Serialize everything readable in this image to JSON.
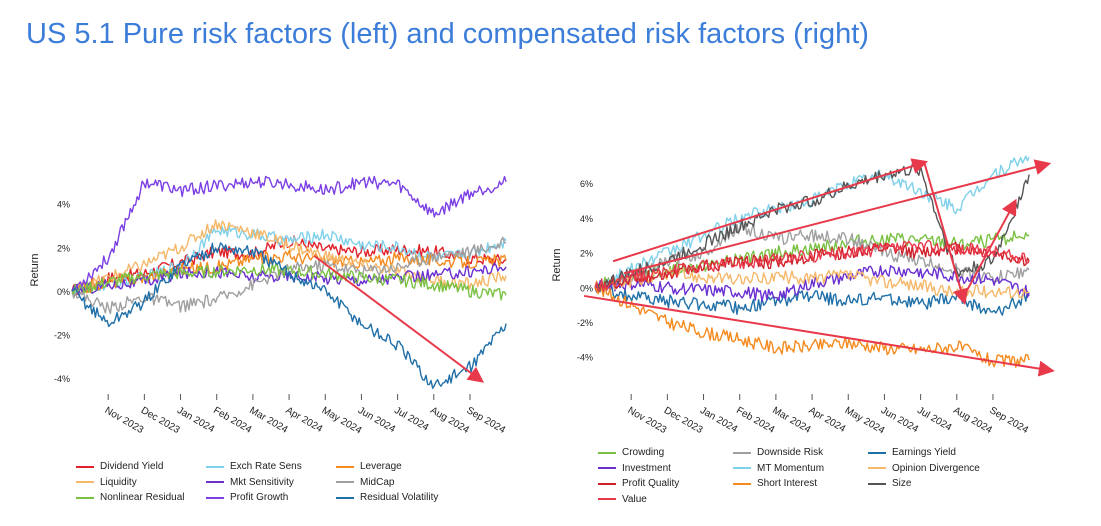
{
  "page": {
    "title": "US 5.1 Pure risk factors (left) and compensated risk factors (right)"
  },
  "chart_data": [
    {
      "type": "line",
      "ylabel": "Return",
      "ylim": [
        -5,
        6
      ],
      "yticks": [
        4,
        2,
        0,
        -2,
        -4
      ],
      "ytick_labels": [
        "4%",
        "2%",
        "0%",
        "-2%",
        "-4%"
      ],
      "xlim": [
        0,
        12.3
      ],
      "xtick_positions": [
        1,
        2,
        3,
        4,
        5,
        6,
        7,
        8,
        9,
        10,
        11
      ],
      "xtick_labels": [
        "Nov 2023",
        "Dec 2023",
        "Jan 2024",
        "Feb 2024",
        "Mar 2024",
        "Apr 2024",
        "May 2024",
        "Jun 2024",
        "Jul 2024",
        "Aug 2024",
        "Sep 2024"
      ],
      "series": [
        {
          "name": "Dividend Yield",
          "color": "#e0202a",
          "x": [
            0,
            1,
            2,
            3,
            4,
            5,
            6,
            7,
            8,
            9,
            10,
            11,
            12
          ],
          "values": [
            0,
            0.6,
            0.8,
            1.3,
            1.8,
            1.7,
            2.3,
            1.9,
            1.8,
            1.9,
            1.8,
            1.5,
            1.4
          ]
        },
        {
          "name": "Exch Rate Sens",
          "color": "#7fd0ea",
          "x": [
            0,
            1,
            2,
            3,
            4,
            5,
            6,
            7,
            8,
            9,
            10,
            11,
            12
          ],
          "values": [
            0,
            0.3,
            0.6,
            1.2,
            2.8,
            2.6,
            2.3,
            2.6,
            2.1,
            2.0,
            1.5,
            1.7,
            2.3
          ]
        },
        {
          "name": "Leverage",
          "color": "#f58a1f",
          "x": [
            0,
            1,
            2,
            3,
            4,
            5,
            6,
            7,
            8,
            9,
            10,
            11,
            12
          ],
          "values": [
            0,
            0.4,
            0.6,
            1.0,
            1.1,
            1.5,
            1.6,
            1.4,
            1.3,
            1.5,
            1.4,
            1.3,
            1.4
          ]
        },
        {
          "name": "Liquidity",
          "color": "#f5b86a",
          "x": [
            0,
            1,
            2,
            3,
            4,
            5,
            6,
            7,
            8,
            9,
            10,
            11,
            12
          ],
          "values": [
            0,
            0.6,
            1.2,
            2.0,
            3.1,
            2.7,
            2.1,
            1.6,
            1.2,
            0.9,
            0.5,
            0.3,
            0.7
          ]
        },
        {
          "name": "Mkt Sensitivity",
          "color": "#6a2fd0",
          "x": [
            0,
            1,
            2,
            3,
            4,
            5,
            6,
            7,
            8,
            9,
            10,
            11,
            12
          ],
          "values": [
            0,
            0.3,
            0.4,
            0.8,
            0.9,
            0.6,
            0.7,
            0.6,
            0.5,
            0.6,
            0.7,
            0.9,
            1.1
          ]
        },
        {
          "name": "MidCap",
          "color": "#a0a0a0",
          "x": [
            0,
            1,
            2,
            3,
            4,
            5,
            6,
            7,
            8,
            9,
            10,
            11,
            12
          ],
          "values": [
            0,
            -0.8,
            -0.3,
            -0.7,
            -0.4,
            0.3,
            1.0,
            1.2,
            0.9,
            1.1,
            1.6,
            1.8,
            2.2
          ]
        },
        {
          "name": "Nonlinear Residual",
          "color": "#7ac143",
          "x": [
            0,
            1,
            2,
            3,
            4,
            5,
            6,
            7,
            8,
            9,
            10,
            11,
            12
          ],
          "values": [
            0,
            0.4,
            0.7,
            0.8,
            0.9,
            1.0,
            0.9,
            0.8,
            0.6,
            0.5,
            0.3,
            0,
            -0.2
          ]
        },
        {
          "name": "Profit Growth",
          "color": "#7b3fe4",
          "x": [
            0,
            1,
            2,
            3,
            4,
            5,
            6,
            7,
            8,
            9,
            10,
            11,
            12
          ],
          "values": [
            0,
            1.5,
            5.0,
            4.6,
            4.8,
            5.0,
            4.9,
            4.6,
            5.0,
            4.9,
            3.5,
            4.5,
            5.0
          ]
        },
        {
          "name": "Residual Volatility",
          "color": "#1f6fa8",
          "x": [
            0,
            1,
            2,
            3,
            4,
            5,
            6,
            7,
            8,
            9,
            10,
            11,
            12
          ],
          "values": [
            0,
            -1.5,
            -0.5,
            1.2,
            2.0,
            1.8,
            0.8,
            0,
            -1.5,
            -2.5,
            -4.4,
            -3.5,
            -1.5
          ]
        }
      ],
      "annotations": [
        {
          "type": "arrow",
          "color": "#e8394a",
          "from": [
            6.7,
            1.6
          ],
          "to": [
            11.3,
            -4.1
          ]
        }
      ]
    },
    {
      "type": "line",
      "ylabel": "Return",
      "ylim": [
        -6.5,
        7.8
      ],
      "yticks": [
        6,
        4,
        2,
        0,
        -2,
        -4
      ],
      "ytick_labels": [
        "6%",
        "4%",
        "2%",
        "0%",
        "-2%",
        "-4%"
      ],
      "xlim": [
        0,
        12.3
      ],
      "xtick_positions": [
        1,
        2,
        3,
        4,
        5,
        6,
        7,
        8,
        9,
        10,
        11
      ],
      "xtick_labels": [
        "Nov 2023",
        "Dec 2023",
        "Jan 2024",
        "Feb 2024",
        "Mar 2024",
        "Apr 2024",
        "May 2024",
        "Jun 2024",
        "Jul 2024",
        "Aug 2024",
        "Sep 2024"
      ],
      "series": [
        {
          "name": "Crowding",
          "color": "#7ac143",
          "x": [
            0,
            1,
            2,
            3,
            4,
            5,
            6,
            7,
            8,
            9,
            10,
            11,
            12
          ],
          "values": [
            0,
            0.8,
            1.0,
            1.2,
            1.6,
            2.0,
            2.2,
            2.6,
            2.8,
            2.7,
            2.5,
            2.7,
            3.0
          ]
        },
        {
          "name": "Downside Risk",
          "color": "#a0a0a0",
          "x": [
            0,
            1,
            2,
            3,
            4,
            5,
            6,
            7,
            8,
            9,
            10,
            11,
            12
          ],
          "values": [
            0,
            0.5,
            1.5,
            2.0,
            3.5,
            2.8,
            3.0,
            2.8,
            2.0,
            1.5,
            1.0,
            0.5,
            1.0
          ]
        },
        {
          "name": "Earnings Yield",
          "color": "#1f6fa8",
          "x": [
            0,
            1,
            2,
            3,
            4,
            5,
            6,
            7,
            8,
            9,
            10,
            11,
            12
          ],
          "values": [
            0,
            -0.5,
            -0.8,
            -1.0,
            -1.2,
            -0.8,
            -0.5,
            -0.8,
            -0.6,
            -1.0,
            -0.6,
            -1.5,
            -0.5
          ]
        },
        {
          "name": "Investment",
          "color": "#6a2fd0",
          "x": [
            0,
            1,
            2,
            3,
            4,
            5,
            6,
            7,
            8,
            9,
            10,
            11,
            12
          ],
          "values": [
            0,
            0.2,
            0,
            -0.2,
            -0.3,
            -0.5,
            0.2,
            0.6,
            1.0,
            0.9,
            0.6,
            0.4,
            -0.3
          ]
        },
        {
          "name": "MT Momentum",
          "color": "#7fd0ea",
          "x": [
            0,
            1,
            2,
            3,
            4,
            5,
            6,
            7,
            8,
            9,
            10,
            11,
            12
          ],
          "values": [
            0,
            1.0,
            2.0,
            3.0,
            4.0,
            4.5,
            5.0,
            6.0,
            6.5,
            5.5,
            4.5,
            6.5,
            7.5
          ]
        },
        {
          "name": "Opinion Divergence",
          "color": "#f5b86a",
          "x": [
            0,
            1,
            2,
            3,
            4,
            5,
            6,
            7,
            8,
            9,
            10,
            11,
            12
          ],
          "values": [
            0,
            0.3,
            0.8,
            0.6,
            0.4,
            0.6,
            0.5,
            0.7,
            0.3,
            0.1,
            -0.3,
            -0.2,
            -0.3
          ]
        },
        {
          "name": "Profit Quality",
          "color": "#d0202a",
          "x": [
            0,
            1,
            2,
            3,
            4,
            5,
            6,
            7,
            8,
            9,
            10,
            11,
            12
          ],
          "values": [
            0,
            0.5,
            0.8,
            1.2,
            1.5,
            1.4,
            1.8,
            2.0,
            2.2,
            2.0,
            2.3,
            2.0,
            1.5
          ]
        },
        {
          "name": "Short Interest",
          "color": "#f58a1f",
          "x": [
            0,
            1,
            2,
            3,
            4,
            5,
            6,
            7,
            8,
            9,
            10,
            11,
            12
          ],
          "values": [
            0,
            -1.0,
            -2.0,
            -2.6,
            -3.0,
            -3.5,
            -3.4,
            -3.2,
            -3.5,
            -3.6,
            -3.4,
            -4.3,
            -4.2
          ]
        },
        {
          "name": "Size",
          "color": "#555555",
          "x": [
            0,
            1,
            2,
            3,
            4,
            5,
            6,
            7,
            8,
            9,
            10,
            11,
            12
          ],
          "values": [
            0,
            0.8,
            1.5,
            2.5,
            3.5,
            4.5,
            5.0,
            5.8,
            6.5,
            6.8,
            0.8,
            1.5,
            6.5
          ]
        },
        {
          "name": "Value",
          "color": "#e8394a",
          "x": [
            0,
            1,
            2,
            3,
            4,
            5,
            6,
            7,
            8,
            9,
            10,
            11,
            12
          ],
          "values": [
            0,
            0.6,
            0.9,
            1.2,
            1.4,
            1.6,
            1.8,
            2.0,
            2.2,
            2.4,
            2.2,
            2.1,
            1.5
          ]
        }
      ],
      "annotations": [
        {
          "type": "arrow",
          "color": "#e8394a",
          "from": [
            0.5,
            1.5
          ],
          "to": [
            9.1,
            7.2
          ]
        },
        {
          "type": "arrow",
          "color": "#e8394a",
          "from": [
            0.8,
            0.8
          ],
          "to": [
            12.5,
            7.1
          ]
        },
        {
          "type": "arrow",
          "color": "#e8394a",
          "from": [
            9.1,
            7.2
          ],
          "to": [
            10.2,
            -0.8
          ]
        },
        {
          "type": "arrow",
          "color": "#e8394a",
          "from": [
            10.2,
            -0.5
          ],
          "to": [
            11.6,
            4.9
          ]
        },
        {
          "type": "arrow",
          "color": "#e8394a",
          "from": [
            -0.3,
            -0.5
          ],
          "to": [
            12.6,
            -4.8
          ]
        }
      ]
    }
  ]
}
